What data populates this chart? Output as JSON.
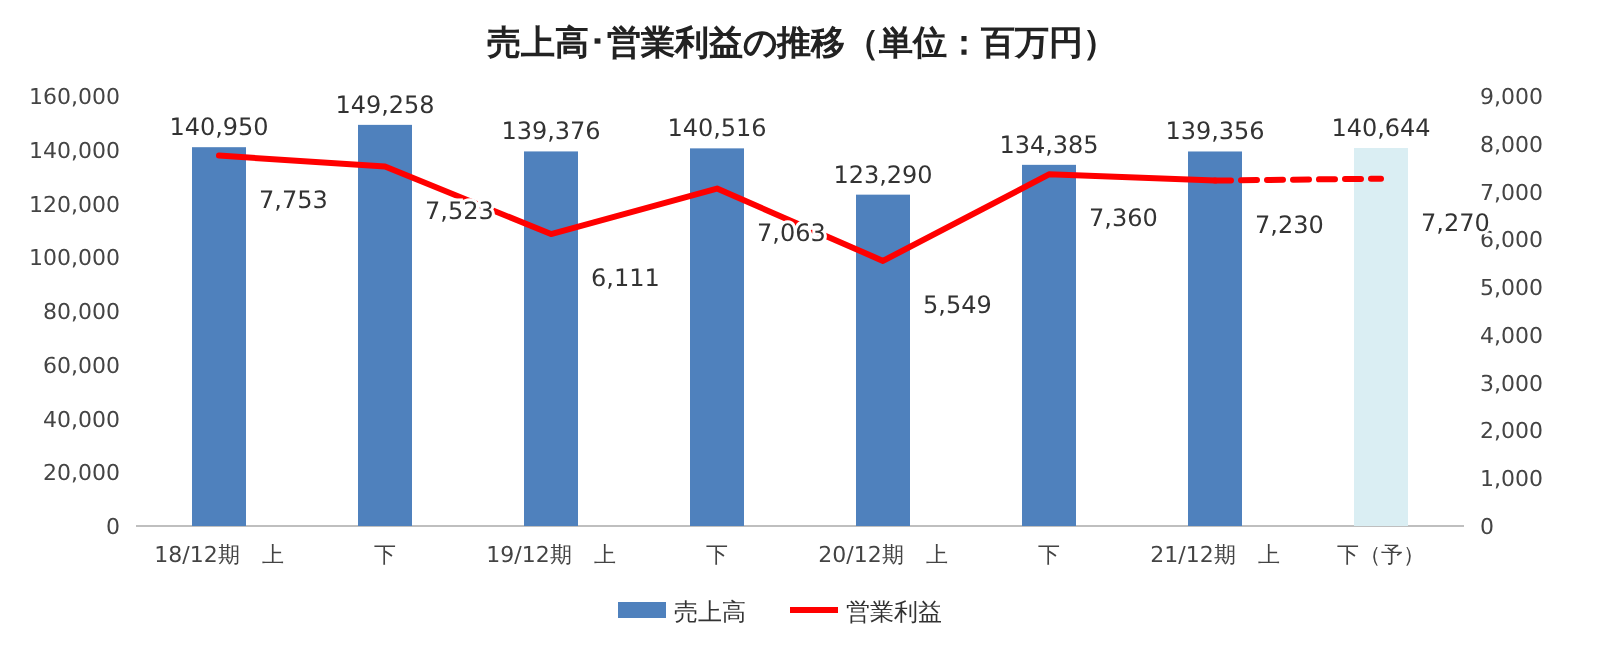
{
  "chart_data": {
    "type": "bar",
    "title": "売上高･営業利益の推移（単位：百万円）",
    "categories": [
      "18/12期　上",
      "下",
      "19/12期　上",
      "下",
      "20/12期　上",
      "下",
      "21/12期　上",
      "下（予）"
    ],
    "ylim": [
      0,
      160000
    ],
    "yticks": [
      {
        "value": 0,
        "label": "0"
      },
      {
        "value": 20000,
        "label": "20,000"
      },
      {
        "value": 40000,
        "label": "40,000"
      },
      {
        "value": 60000,
        "label": "60,000"
      },
      {
        "value": 80000,
        "label": "80,000"
      },
      {
        "value": 100000,
        "label": "100,000"
      },
      {
        "value": 120000,
        "label": "120,000"
      },
      {
        "value": 140000,
        "label": "140,000"
      },
      {
        "value": 160000,
        "label": "160,000"
      }
    ],
    "y2lim": [
      0,
      9000
    ],
    "y2ticks": [
      {
        "value": 0,
        "label": "0"
      },
      {
        "value": 1000,
        "label": "1,000"
      },
      {
        "value": 2000,
        "label": "2,000"
      },
      {
        "value": 3000,
        "label": "3,000"
      },
      {
        "value": 4000,
        "label": "4,000"
      },
      {
        "value": 5000,
        "label": "5,000"
      },
      {
        "value": 6000,
        "label": "6,000"
      },
      {
        "value": 7000,
        "label": "7,000"
      },
      {
        "value": 8000,
        "label": "8,000"
      },
      {
        "value": 9000,
        "label": "9,000"
      }
    ],
    "legend": "bottom",
    "series": [
      {
        "name": "売上高",
        "colors": [
          "#4f81bd",
          "#4f81bd",
          "#4f81bd",
          "#4f81bd",
          "#4f81bd",
          "#4f81bd",
          "#4f81bd",
          "#daeef3"
        ],
        "values": [
          140950,
          149258,
          139376,
          140516,
          123290,
          134385,
          139356,
          140644
        ],
        "value_labels": [
          "140,950",
          "149,258",
          "139,376",
          "140,516",
          "123,290",
          "134,385",
          "139,356",
          "140,644"
        ]
      },
      {
        "name": "営業利益",
        "type": "line",
        "axis": "y2",
        "color": "#ff0000",
        "line_style": "solid",
        "values": [
          7753,
          7523,
          6111,
          7063,
          5549,
          7360,
          7230,
          null
        ],
        "value_labels": [
          "7,753",
          "7,523",
          "6,111",
          "7,063",
          "5,549",
          "7,360",
          "7,230",
          null
        ]
      },
      {
        "type": "line",
        "axis": "y2",
        "color": "#ff0000",
        "line_style": "dashed",
        "values": [
          null,
          null,
          null,
          null,
          null,
          null,
          7230,
          7270
        ],
        "value_labels": [
          null,
          null,
          null,
          null,
          null,
          null,
          null,
          "7,270"
        ]
      }
    ]
  }
}
